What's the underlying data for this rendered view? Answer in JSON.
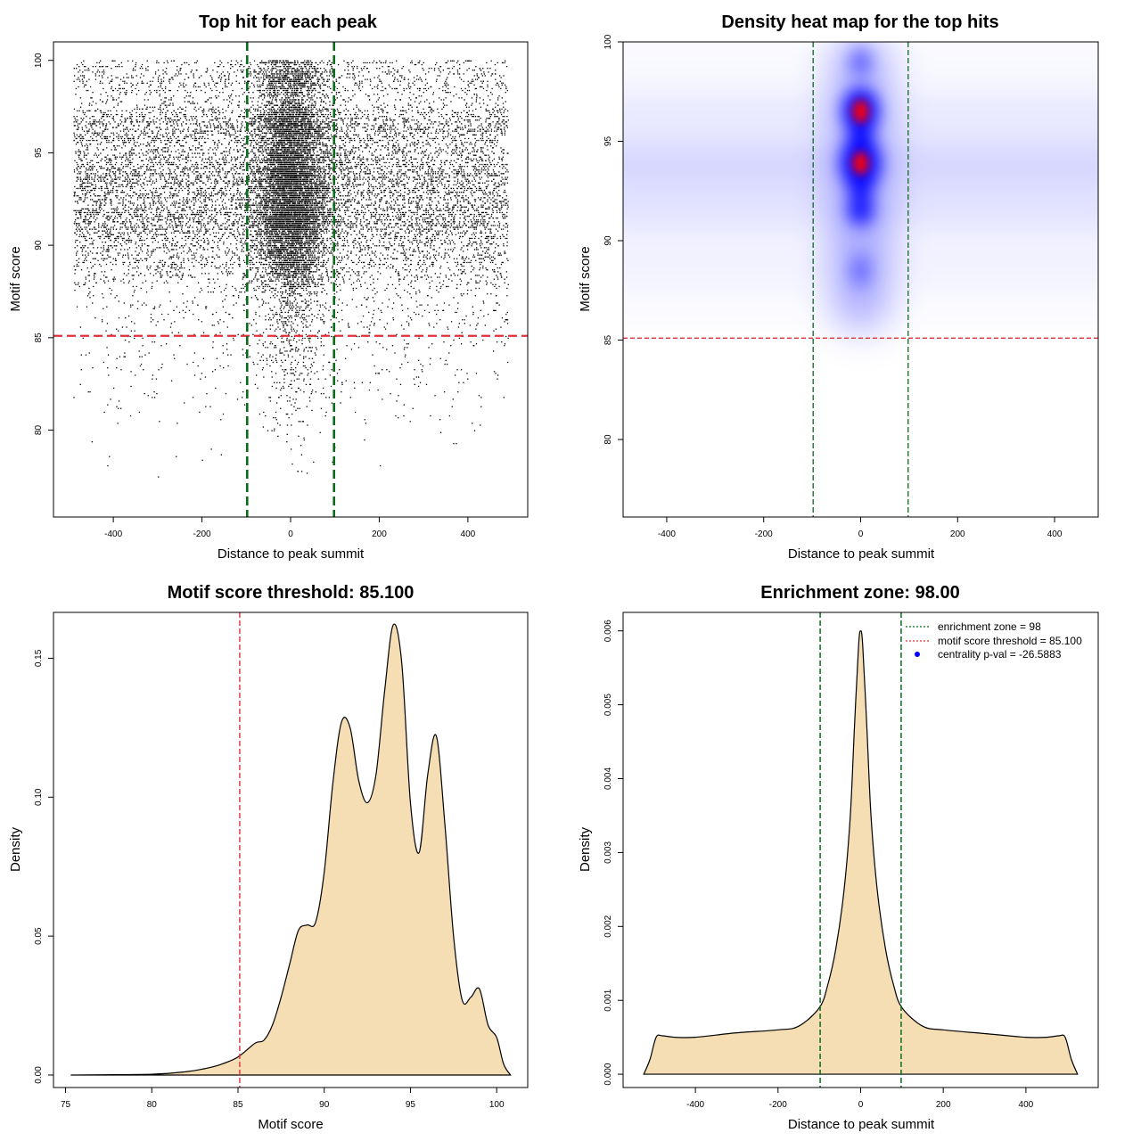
{
  "colors": {
    "threshold": "#e0303a",
    "zone": "#0a6b1a",
    "fill": "#f5deb3",
    "density_low": "#ffffff",
    "density_mid": "#0000ff",
    "density_high": "#ff0000",
    "point": "#000000"
  },
  "chart_data": [
    {
      "type": "scatter",
      "title": "Top hit for each peak",
      "xlabel": "Distance to peak summit",
      "ylabel": "Motif score",
      "xlim": [
        -535,
        535
      ],
      "ylim": [
        75.3,
        101.0
      ],
      "xticks": [
        -400,
        -200,
        0,
        200,
        400
      ],
      "yticks": [
        80,
        85,
        90,
        95,
        100
      ],
      "x_range": [
        -490,
        490
      ],
      "y_range": [
        76.2,
        100.0
      ],
      "score_modes": [
        91.5,
        93.9,
        96.5
      ],
      "center_peak_sd": 40,
      "n_points_approx": 20000,
      "threshold": 85.1,
      "zone": [
        -98,
        98
      ]
    },
    {
      "type": "heatmap",
      "title": "Density heat map for the top hits",
      "xlabel": "Distance to peak summit",
      "ylabel": "Motif score",
      "xlim": [
        -490,
        490
      ],
      "ylim": [
        76.1,
        100.0
      ],
      "xticks": [
        -400,
        -200,
        0,
        200,
        400
      ],
      "yticks": [
        80,
        85,
        90,
        95,
        100
      ],
      "hotspots": [
        {
          "x": 0,
          "y": 93.9,
          "level": "high"
        },
        {
          "x": 0,
          "y": 96.5,
          "level": "high"
        },
        {
          "x": 0,
          "y": 91.6,
          "level": "mid"
        },
        {
          "x": 0,
          "y": 99.0,
          "level": "low"
        },
        {
          "x": 0,
          "y": 88.5,
          "level": "low"
        }
      ],
      "threshold": 85.1,
      "zone": [
        -98,
        98
      ]
    },
    {
      "type": "area",
      "title": "Motif score threshold: 85.100",
      "xlabel": "Motif score",
      "ylabel": "Density",
      "xlim": [
        74.3,
        101.8
      ],
      "ylim": [
        -0.0045,
        0.1665
      ],
      "xticks": [
        75,
        80,
        85,
        90,
        95,
        100
      ],
      "yticks": [
        0.0,
        0.05,
        0.1,
        0.15
      ],
      "ytick_labels": [
        "0.00",
        "0.05",
        "0.10",
        "0.15"
      ],
      "x": [
        75.3,
        80,
        82,
        83,
        84,
        85,
        86,
        86.5,
        87,
        87.5,
        88,
        88.5,
        89,
        89.5,
        90,
        90.5,
        91,
        91.5,
        92,
        92.5,
        93,
        93.5,
        94,
        94.5,
        95,
        95.5,
        96,
        96.5,
        97,
        97.5,
        98,
        98.5,
        99,
        99.5,
        100,
        100.4,
        100.8
      ],
      "y": [
        0.0,
        0.0003,
        0.0012,
        0.0022,
        0.0038,
        0.0065,
        0.0115,
        0.0125,
        0.018,
        0.028,
        0.04,
        0.052,
        0.054,
        0.055,
        0.073,
        0.105,
        0.127,
        0.125,
        0.106,
        0.098,
        0.108,
        0.138,
        0.162,
        0.148,
        0.098,
        0.08,
        0.108,
        0.122,
        0.09,
        0.05,
        0.027,
        0.028,
        0.031,
        0.018,
        0.0135,
        0.004,
        0.0
      ],
      "threshold": 85.1
    },
    {
      "type": "area",
      "title": "Enrichment zone: 98.00",
      "xlabel": "Distance to peak summit",
      "ylabel": "Density",
      "xlim": [
        -575,
        575
      ],
      "ylim": [
        -0.00018,
        0.00625
      ],
      "xticks": [
        -400,
        -200,
        0,
        200,
        400
      ],
      "yticks": [
        0.0,
        0.001,
        0.002,
        0.003,
        0.004,
        0.005,
        0.006
      ],
      "ytick_labels": [
        "0.000",
        "0.001",
        "0.002",
        "0.003",
        "0.004",
        "0.005",
        "0.006"
      ],
      "x": [
        -525,
        -510,
        -495,
        -480,
        -450,
        -400,
        -300,
        -200,
        -150,
        -100,
        -80,
        -60,
        -40,
        -25,
        -15,
        -5,
        0,
        5,
        15,
        25,
        40,
        60,
        80,
        100,
        150,
        200,
        300,
        400,
        450,
        480,
        495,
        510,
        525
      ],
      "y": [
        0.0,
        0.0002,
        0.0005,
        0.00052,
        0.0005,
        0.0005,
        0.00056,
        0.0006,
        0.00065,
        0.0009,
        0.0012,
        0.0017,
        0.0025,
        0.0035,
        0.0047,
        0.0058,
        0.006,
        0.0058,
        0.0047,
        0.0035,
        0.0025,
        0.0017,
        0.0012,
        0.0009,
        0.00065,
        0.0006,
        0.00055,
        0.0005,
        0.0005,
        0.00052,
        0.0005,
        0.0002,
        0.0
      ],
      "zone": [
        -98,
        98
      ],
      "legend": [
        {
          "label": "enrichment zone = 98",
          "kind": "line",
          "color": "#0a6b1a"
        },
        {
          "label": "motif score threshold = 85.100",
          "kind": "line",
          "color": "#e0303a"
        },
        {
          "label": "centrality p-val = -26.5883",
          "kind": "point",
          "color": "#0000ff"
        }
      ]
    }
  ]
}
